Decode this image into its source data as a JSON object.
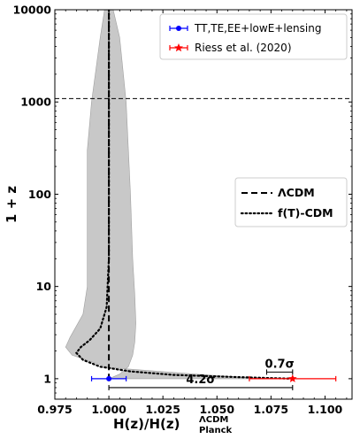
{
  "chart_data": {
    "type": "line",
    "xlim": [
      0.975,
      1.1125
    ],
    "ylim_1pz": [
      0.6,
      10000
    ],
    "yscale": "log",
    "xlabel": {
      "main": "H(z)/H(z)",
      "sup": "ΛCDM",
      "sub": "Planck"
    },
    "ylabel": "1 + z",
    "x_ticks": [
      0.975,
      1.0,
      1.025,
      1.05,
      1.075,
      1.1
    ],
    "x_tick_labels": [
      "0.975",
      "1.000",
      "1.025",
      "1.050",
      "1.075",
      "1.100"
    ],
    "y_ticks": [
      1,
      10,
      100,
      1000,
      10000
    ],
    "y_tick_labels": [
      "1",
      "10",
      "100",
      "1000",
      "10000"
    ],
    "hline_1pz": 1090,
    "band": {
      "color": "#c8c8c8",
      "right": [
        [
          1.0,
          1.0
        ],
        [
          1.005,
          1.12
        ],
        [
          1.009,
          1.35
        ],
        [
          1.011,
          1.8
        ],
        [
          1.012,
          2.5
        ],
        [
          1.0125,
          4
        ],
        [
          1.012,
          8
        ],
        [
          1.011,
          20
        ],
        [
          1.01,
          100
        ],
        [
          1.008,
          1000
        ],
        [
          1.005,
          5000
        ],
        [
          1.002,
          10000
        ]
      ],
      "left": [
        [
          0.998,
          10000
        ],
        [
          0.996,
          5000
        ],
        [
          0.992,
          1000
        ],
        [
          0.99,
          300
        ],
        [
          0.99,
          100
        ],
        [
          0.99,
          30
        ],
        [
          0.99,
          10
        ],
        [
          0.988,
          5
        ],
        [
          0.982,
          2.8
        ],
        [
          0.98,
          2.2
        ],
        [
          0.983,
          1.8
        ],
        [
          1.0,
          1.32
        ],
        [
          1.04,
          1.12
        ],
        [
          1.066,
          1.02
        ],
        [
          1.08,
          1.0
        ]
      ]
    },
    "series": [
      {
        "name": "ΛCDM",
        "style": "dashed",
        "color": "#000000",
        "points": [
          [
            1.0,
            0.97
          ],
          [
            1.0,
            10000
          ]
        ]
      },
      {
        "name": "f(T)-CDM",
        "style": "dotted",
        "color": "#000000",
        "points": [
          [
            1.085,
            1.0
          ],
          [
            1.06,
            1.04
          ],
          [
            1.03,
            1.1
          ],
          [
            1.01,
            1.2
          ],
          [
            0.996,
            1.35
          ],
          [
            0.988,
            1.6
          ],
          [
            0.985,
            1.9
          ],
          [
            0.987,
            2.2
          ],
          [
            0.991,
            2.6
          ],
          [
            0.996,
            3.5
          ],
          [
            0.999,
            6
          ],
          [
            1.0,
            20
          ],
          [
            1.0,
            10000
          ]
        ]
      }
    ],
    "points": [
      {
        "name": "TT,TE,EE+lowE+lensing",
        "x": 1.0,
        "xerr": 0.008,
        "y_1pz": 1.0,
        "color": "#0000ff",
        "marker": "dot"
      },
      {
        "name": "Riess et al. (2020)",
        "x": 1.085,
        "xerr": 0.02,
        "y_1pz": 1.0,
        "color": "#ff0000",
        "marker": "star"
      }
    ],
    "tension_annotations": [
      {
        "label": "0.7σ",
        "x_from": 1.073,
        "x_to": 1.085,
        "y_1pz": 1.18
      },
      {
        "label": "4.2σ",
        "x_from": 1.0,
        "x_to": 1.085,
        "y_1pz": 0.8
      }
    ],
    "legend_top": {
      "placement": "top-right",
      "entries": [
        "TT,TE,EE+lowE+lensing",
        "Riess et al. (2020)"
      ]
    },
    "legend_mid": {
      "placement": "center-right",
      "entries": [
        "ΛCDM",
        "f(T)-CDM"
      ]
    }
  }
}
